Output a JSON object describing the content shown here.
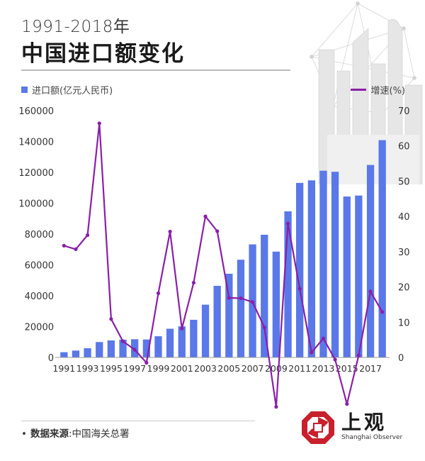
{
  "header": {
    "year_range": "1991-2018年",
    "title": "中国进口额变化"
  },
  "legend": {
    "bar_label": "进口额(亿元人民币)",
    "line_label": "增速(%)"
  },
  "source": {
    "bullet": "•",
    "label": "数据来源",
    "text": ":中国海关总署"
  },
  "brand": {
    "name_cn": "上观",
    "name_en": "Shanghai Observer"
  },
  "colors": {
    "bar": "#5a78e8",
    "line": "#8a1fa8",
    "logo": "#c8202c"
  },
  "chart_data": {
    "type": "bar",
    "title": "中国进口额变化",
    "x": [
      1991,
      1992,
      1993,
      1994,
      1995,
      1996,
      1997,
      1998,
      1999,
      2000,
      2001,
      2002,
      2003,
      2004,
      2005,
      2006,
      2007,
      2008,
      2009,
      2010,
      2011,
      2012,
      2013,
      2014,
      2015,
      2016,
      2017,
      2018
    ],
    "x_tick_labels": [
      "1991",
      "1993",
      "1995",
      "1997",
      "1999",
      "2001",
      "2003",
      "2005",
      "2007",
      "2009",
      "2011",
      "2013",
      "2015",
      "2017"
    ],
    "left_axis": {
      "ylim": [
        0,
        160000
      ],
      "ticks": [
        "0",
        "20000",
        "40000",
        "60000",
        "80000",
        "100000",
        "120000",
        "140000",
        "160000"
      ]
    },
    "right_axis": {
      "ylim": [
        0,
        70
      ],
      "ticks": [
        "0",
        "10",
        "20",
        "30",
        "40",
        "50",
        "60",
        "70"
      ]
    },
    "series": [
      {
        "name": "进口额(亿元人民币)",
        "type": "bar",
        "axis": "left",
        "values": [
          3399,
          4443,
          5986,
          9960,
          11048,
          11557,
          11806,
          11626,
          13736,
          18639,
          20159,
          24430,
          34196,
          46436,
          54274,
          63377,
          73300,
          79527,
          68618,
          94700,
          113161,
          114801,
          121037,
          120358,
          104336,
          104967,
          124790,
          140874
        ]
      },
      {
        "name": "增速(%)",
        "type": "line",
        "axis": "right",
        "values": [
          31.7,
          30.7,
          34.7,
          66.4,
          10.9,
          4.6,
          2.2,
          -1.5,
          18.2,
          35.7,
          8.2,
          21.2,
          40.0,
          35.8,
          16.9,
          16.8,
          15.7,
          8.5,
          -14.0,
          38.0,
          19.5,
          1.4,
          5.4,
          -0.6,
          -13.2,
          0.6,
          18.7,
          12.9
        ]
      }
    ],
    "grid": false,
    "legend_position": "top"
  }
}
